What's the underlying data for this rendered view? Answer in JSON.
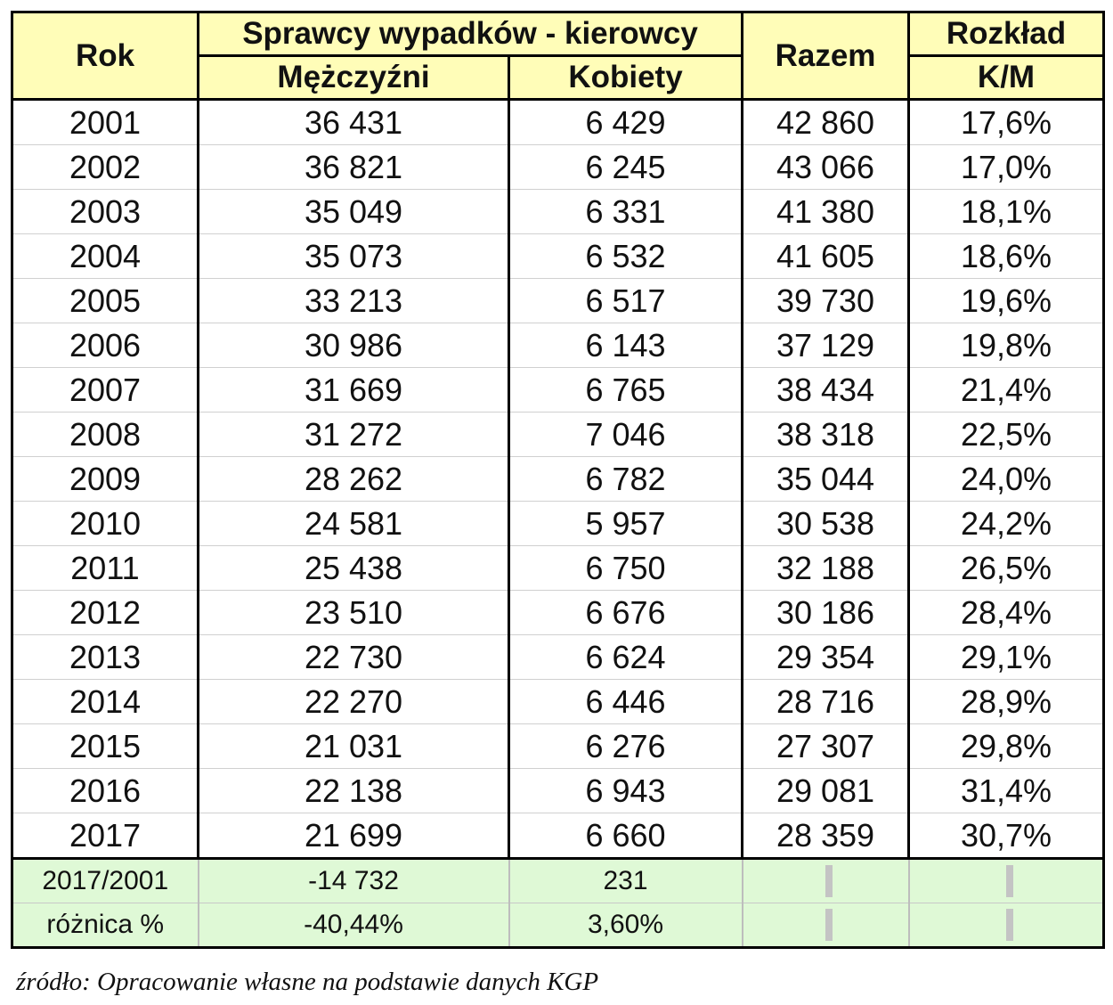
{
  "chart_data": {
    "type": "table",
    "header": {
      "year": "Rok",
      "group": "Sprawcy wypadków - kierowcy",
      "men": "Mężczyźni",
      "women": "Kobiety",
      "total": "Razem",
      "share_line1": "Rozkład",
      "share_line2": "K/M"
    },
    "rows": [
      [
        "2001",
        "36 431",
        "6 429",
        "42 860",
        "17,6%"
      ],
      [
        "2002",
        "36 821",
        "6 245",
        "43 066",
        "17,0%"
      ],
      [
        "2003",
        "35 049",
        "6 331",
        "41 380",
        "18,1%"
      ],
      [
        "2004",
        "35 073",
        "6 532",
        "41 605",
        "18,6%"
      ],
      [
        "2005",
        "33 213",
        "6 517",
        "39 730",
        "19,6%"
      ],
      [
        "2006",
        "30 986",
        "6 143",
        "37 129",
        "19,8%"
      ],
      [
        "2007",
        "31 669",
        "6 765",
        "38 434",
        "21,4%"
      ],
      [
        "2008",
        "31 272",
        "7 046",
        "38 318",
        "22,5%"
      ],
      [
        "2009",
        "28 262",
        "6 782",
        "35 044",
        "24,0%"
      ],
      [
        "2010",
        "24 581",
        "5 957",
        "30 538",
        "24,2%"
      ],
      [
        "2011",
        "25 438",
        "6 750",
        "32 188",
        "26,5%"
      ],
      [
        "2012",
        "23 510",
        "6 676",
        "30 186",
        "28,4%"
      ],
      [
        "2013",
        "22 730",
        "6 624",
        "29 354",
        "29,1%"
      ],
      [
        "2014",
        "22 270",
        "6 446",
        "28 716",
        "28,9%"
      ],
      [
        "2015",
        "21 031",
        "6 276",
        "27 307",
        "29,8%"
      ],
      [
        "2016",
        "22 138",
        "6 943",
        "29 081",
        "31,4%"
      ],
      [
        "2017",
        "21 699",
        "6 660",
        "28 359",
        "30,7%"
      ]
    ],
    "summary": [
      [
        "2017/2001",
        "-14 732",
        "231"
      ],
      [
        "różnica %",
        "-40,44%",
        "3,60%"
      ]
    ],
    "colors": {
      "header_bg": "#fffdb8",
      "summary_bg": "#dff9d6"
    }
  },
  "source": "źródło: Opracowanie własne na podstawie danych KGP"
}
